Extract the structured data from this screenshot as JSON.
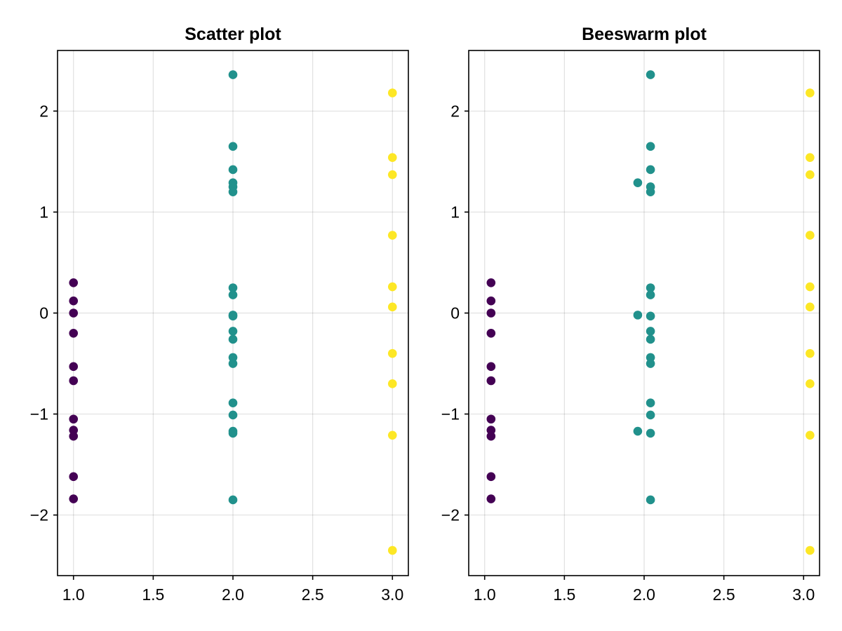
{
  "chart_data": [
    {
      "type": "scatter",
      "title": "Scatter plot",
      "xlim": [
        0.9,
        3.1
      ],
      "ylim": [
        -2.6,
        2.6
      ],
      "xticks": [
        1.0,
        1.5,
        2.0,
        2.5,
        3.0
      ],
      "xtick_labels": [
        "1.0",
        "1.5",
        "2.0",
        "2.5",
        "3.0"
      ],
      "yticks": [
        -2,
        -1,
        0,
        1,
        2
      ],
      "ytick_labels": [
        "−2",
        "−1",
        "0",
        "1",
        "2"
      ],
      "grid": true,
      "series": [
        {
          "color": "#440154",
          "points": [
            [
              1.0,
              0.3
            ],
            [
              1.0,
              0.12
            ],
            [
              1.0,
              0.0
            ],
            [
              1.0,
              -0.2
            ],
            [
              1.0,
              -0.53
            ],
            [
              1.0,
              -0.67
            ],
            [
              1.0,
              -1.05
            ],
            [
              1.0,
              -1.16
            ],
            [
              1.0,
              -1.22
            ],
            [
              1.0,
              -1.62
            ],
            [
              1.0,
              -1.84
            ]
          ]
        },
        {
          "color": "#21918c",
          "points": [
            [
              2.0,
              2.36
            ],
            [
              2.0,
              1.65
            ],
            [
              2.0,
              1.42
            ],
            [
              2.0,
              1.29
            ],
            [
              2.0,
              1.25
            ],
            [
              2.0,
              1.2
            ],
            [
              2.0,
              0.25
            ],
            [
              2.0,
              0.18
            ],
            [
              2.0,
              -0.02
            ],
            [
              2.0,
              -0.03
            ],
            [
              2.0,
              -0.18
            ],
            [
              2.0,
              -0.26
            ],
            [
              2.0,
              -0.44
            ],
            [
              2.0,
              -0.5
            ],
            [
              2.0,
              -0.89
            ],
            [
              2.0,
              -1.01
            ],
            [
              2.0,
              -1.17
            ],
            [
              2.0,
              -1.19
            ],
            [
              2.0,
              -1.85
            ]
          ]
        },
        {
          "color": "#fde725",
          "points": [
            [
              3.0,
              2.18
            ],
            [
              3.0,
              1.54
            ],
            [
              3.0,
              1.37
            ],
            [
              3.0,
              0.77
            ],
            [
              3.0,
              0.26
            ],
            [
              3.0,
              0.06
            ],
            [
              3.0,
              -0.4
            ],
            [
              3.0,
              -0.7
            ],
            [
              3.0,
              -1.21
            ],
            [
              3.0,
              -2.35
            ]
          ]
        }
      ]
    },
    {
      "type": "scatter",
      "title": "Beeswarm plot",
      "xlim": [
        0.9,
        3.1
      ],
      "ylim": [
        -2.6,
        2.6
      ],
      "xticks": [
        1.0,
        1.5,
        2.0,
        2.5,
        3.0
      ],
      "xtick_labels": [
        "1.0",
        "1.5",
        "2.0",
        "2.5",
        "3.0"
      ],
      "yticks": [
        -2,
        -1,
        0,
        1,
        2
      ],
      "ytick_labels": [
        "−2",
        "−1",
        "0",
        "1",
        "2"
      ],
      "grid": true,
      "series": [
        {
          "color": "#440154",
          "points": [
            [
              1.04,
              0.3
            ],
            [
              1.04,
              0.12
            ],
            [
              1.04,
              0.0
            ],
            [
              1.04,
              -0.2
            ],
            [
              1.04,
              -0.53
            ],
            [
              1.04,
              -0.67
            ],
            [
              1.04,
              -1.05
            ],
            [
              1.04,
              -1.16
            ],
            [
              1.04,
              -1.22
            ],
            [
              1.04,
              -1.62
            ],
            [
              1.04,
              -1.84
            ]
          ]
        },
        {
          "color": "#21918c",
          "points": [
            [
              2.04,
              2.36
            ],
            [
              2.04,
              1.65
            ],
            [
              2.04,
              1.42
            ],
            [
              1.96,
              1.29
            ],
            [
              2.04,
              1.25
            ],
            [
              2.04,
              1.2
            ],
            [
              2.04,
              0.25
            ],
            [
              2.04,
              0.18
            ],
            [
              1.96,
              -0.02
            ],
            [
              2.04,
              -0.03
            ],
            [
              2.04,
              -0.18
            ],
            [
              2.04,
              -0.26
            ],
            [
              2.04,
              -0.44
            ],
            [
              2.04,
              -0.5
            ],
            [
              2.04,
              -0.89
            ],
            [
              2.04,
              -1.01
            ],
            [
              1.96,
              -1.17
            ],
            [
              2.04,
              -1.19
            ],
            [
              2.04,
              -1.85
            ]
          ]
        },
        {
          "color": "#fde725",
          "points": [
            [
              3.04,
              2.18
            ],
            [
              3.04,
              1.54
            ],
            [
              3.04,
              1.37
            ],
            [
              3.04,
              0.77
            ],
            [
              3.04,
              0.26
            ],
            [
              3.04,
              0.06
            ],
            [
              3.04,
              -0.4
            ],
            [
              3.04,
              -0.7
            ],
            [
              3.04,
              -1.21
            ],
            [
              3.04,
              -2.35
            ]
          ]
        }
      ]
    }
  ]
}
